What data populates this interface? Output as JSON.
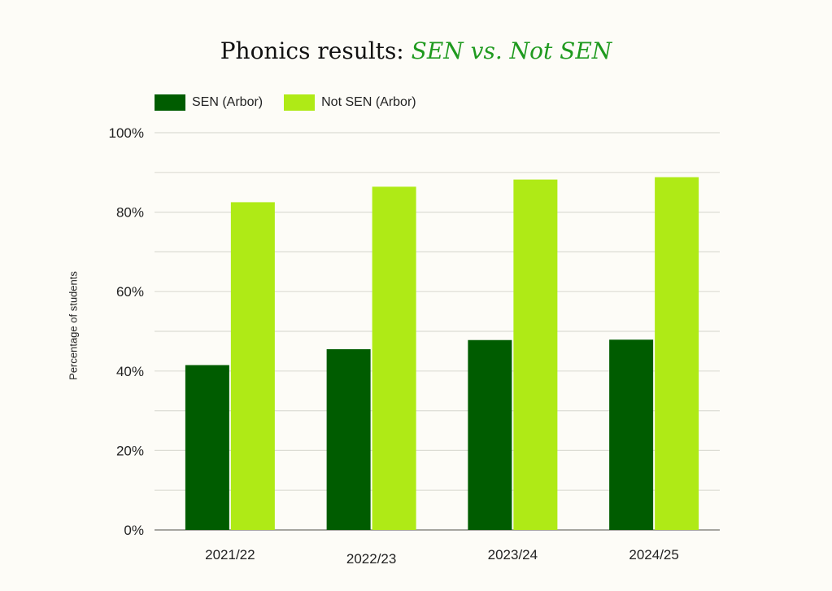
{
  "title": {
    "prefix": "Phonics results: ",
    "accent": "SEN vs. Not SEN"
  },
  "colors": {
    "sen": "#005c00",
    "not_sen": "#afea16",
    "grid": "#dcdcd4",
    "axis": "#8a8a84",
    "title_accent": "#1f9a1f"
  },
  "chart_data": {
    "type": "bar",
    "categories": [
      "2021/22",
      "2022/23",
      "2023/24",
      "2024/25"
    ],
    "series": [
      {
        "name": "SEN (Arbor)",
        "values": [
          41.5,
          45.5,
          47.8,
          47.9
        ]
      },
      {
        "name": "Not SEN (Arbor)",
        "values": [
          82.5,
          86.4,
          88.2,
          88.8
        ]
      }
    ],
    "ylabel": "Percentage of students",
    "ylim": [
      0,
      100
    ],
    "yticks": [
      "0%",
      "20%",
      "40%",
      "60%",
      "80%",
      "100%"
    ],
    "grid": true,
    "legend": "top-left"
  }
}
